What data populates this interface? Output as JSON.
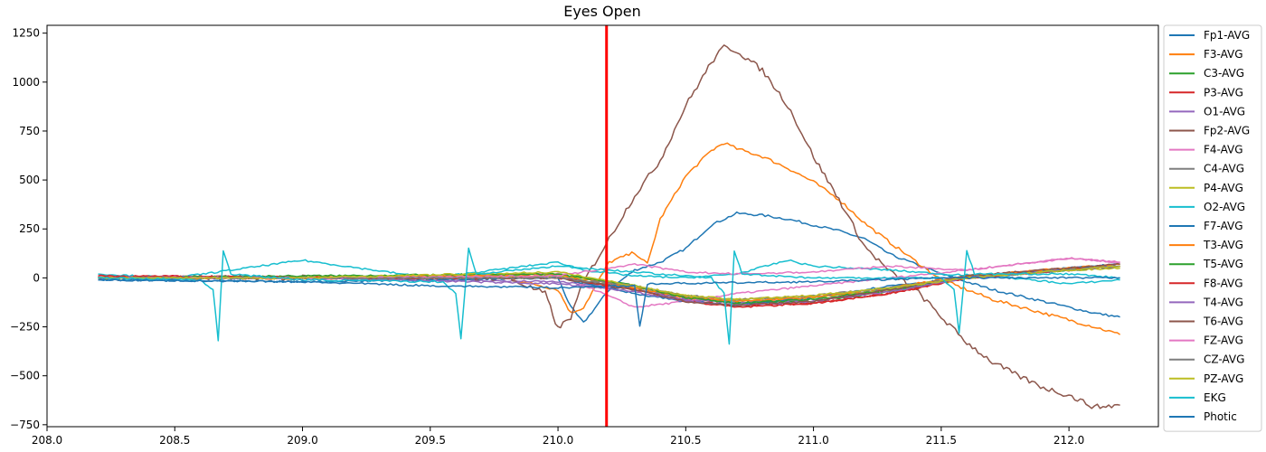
{
  "chart_data": {
    "type": "line",
    "title": "Eyes Open",
    "xlabel": "",
    "ylabel": "",
    "xlim": [
      208.0,
      212.35
    ],
    "ylim": [
      -760,
      1290
    ],
    "xticks": [
      208.0,
      208.5,
      209.0,
      209.5,
      210.0,
      210.5,
      211.0,
      211.5,
      212.0
    ],
    "xtick_labels": [
      "208.0",
      "208.5",
      "209.0",
      "209.5",
      "210.0",
      "210.5",
      "211.0",
      "211.5",
      "212.0"
    ],
    "yticks": [
      -750,
      -500,
      -250,
      0,
      250,
      500,
      750,
      1000,
      1250
    ],
    "ytick_labels": [
      "−750",
      "−500",
      "−250",
      "0",
      "250",
      "500",
      "750",
      "1000",
      "1250"
    ],
    "grid": false,
    "legend_position": "outside-right",
    "marker_line": {
      "x": 210.19,
      "color": "#ff0000"
    },
    "series": [
      {
        "name": "Fp1-AVG",
        "color": "#1f77b4",
        "x": [
          208.2,
          209.0,
          209.8,
          210.0,
          210.05,
          210.1,
          210.2,
          210.3,
          210.4,
          210.5,
          210.6,
          210.7,
          210.8,
          210.9,
          211.0,
          211.1,
          211.2,
          211.3,
          211.5,
          211.7,
          211.9,
          212.1,
          212.2
        ],
        "y": [
          0,
          0,
          5,
          0,
          -150,
          -230,
          -60,
          40,
          80,
          150,
          270,
          330,
          320,
          300,
          270,
          240,
          200,
          120,
          20,
          -60,
          -120,
          -180,
          -200
        ]
      },
      {
        "name": "F3-AVG",
        "color": "#ff7f0e",
        "x": [
          208.2,
          209.0,
          209.8,
          210.0,
          210.05,
          210.1,
          210.2,
          210.3,
          210.35,
          210.4,
          210.5,
          210.6,
          210.65,
          210.7,
          210.8,
          210.9,
          211.0,
          211.1,
          211.2,
          211.3,
          211.5,
          211.7,
          211.9,
          212.1,
          212.2
        ],
        "y": [
          0,
          0,
          0,
          -60,
          -180,
          -150,
          80,
          130,
          70,
          300,
          520,
          650,
          690,
          660,
          620,
          560,
          490,
          400,
          280,
          180,
          -10,
          -110,
          -180,
          -250,
          -290
        ]
      },
      {
        "name": "C3-AVG",
        "color": "#2ca02c",
        "x": [
          208.2,
          209.0,
          210.0,
          210.3,
          210.5,
          210.7,
          211.0,
          211.3,
          211.6,
          212.0,
          212.2
        ],
        "y": [
          5,
          0,
          20,
          -40,
          -100,
          -130,
          -120,
          -70,
          0,
          40,
          60
        ]
      },
      {
        "name": "P3-AVG",
        "color": "#d62728",
        "x": [
          208.2,
          209.0,
          210.0,
          210.3,
          210.5,
          210.7,
          211.0,
          211.3,
          211.6,
          212.0,
          212.2
        ],
        "y": [
          10,
          5,
          10,
          -60,
          -110,
          -140,
          -130,
          -80,
          0,
          40,
          60
        ]
      },
      {
        "name": "O1-AVG",
        "color": "#9467bd",
        "x": [
          208.2,
          209.0,
          210.0,
          210.3,
          210.5,
          210.7,
          211.0,
          211.3,
          211.6,
          212.0,
          212.2
        ],
        "y": [
          0,
          0,
          -20,
          -60,
          -110,
          -130,
          -110,
          -60,
          10,
          50,
          70
        ]
      },
      {
        "name": "Fp2-AVG",
        "color": "#8c564b",
        "x": [
          208.2,
          209.0,
          209.8,
          209.95,
          210.0,
          210.05,
          210.1,
          210.2,
          210.3,
          210.4,
          210.5,
          210.6,
          210.65,
          210.7,
          210.8,
          210.9,
          211.0,
          211.1,
          211.2,
          211.3,
          211.4,
          211.5,
          211.6,
          211.7,
          211.8,
          211.9,
          212.0,
          212.1,
          212.2
        ],
        "y": [
          0,
          0,
          0,
          -80,
          -260,
          -200,
          -20,
          200,
          420,
          600,
          880,
          1100,
          1180,
          1160,
          1060,
          880,
          620,
          400,
          160,
          30,
          -60,
          -200,
          -330,
          -430,
          -500,
          -560,
          -600,
          -660,
          -650
        ]
      },
      {
        "name": "F4-AVG",
        "color": "#e377c2",
        "x": [
          208.2,
          209.0,
          210.0,
          210.3,
          210.5,
          210.7,
          211.0,
          211.3,
          211.6,
          212.0,
          212.2
        ],
        "y": [
          10,
          0,
          20,
          -150,
          -120,
          -80,
          -40,
          0,
          40,
          100,
          80
        ]
      },
      {
        "name": "C4-AVG",
        "color": "#7f7f7f",
        "x": [
          208.2,
          209.0,
          210.0,
          210.3,
          210.5,
          210.7,
          211.0,
          211.3,
          211.6,
          212.0,
          212.2
        ],
        "y": [
          0,
          0,
          0,
          -50,
          -100,
          -120,
          -100,
          -60,
          0,
          40,
          60
        ]
      },
      {
        "name": "P4-AVG",
        "color": "#bcbd22",
        "x": [
          208.2,
          209.0,
          210.0,
          210.3,
          210.5,
          210.7,
          211.0,
          211.3,
          211.6,
          212.0,
          212.2
        ],
        "y": [
          0,
          0,
          10,
          -40,
          -90,
          -110,
          -100,
          -60,
          0,
          40,
          50
        ]
      },
      {
        "name": "O2-AVG",
        "color": "#17becf",
        "x": [
          208.2,
          208.5,
          209.0,
          209.5,
          210.0,
          210.1,
          210.3,
          210.5,
          210.7,
          210.9,
          211.0,
          211.3,
          211.5,
          211.7,
          212.0,
          212.2
        ],
        "y": [
          20,
          0,
          90,
          0,
          80,
          40,
          10,
          0,
          20,
          90,
          60,
          40,
          20,
          10,
          -30,
          -10
        ]
      },
      {
        "name": "F7-AVG",
        "color": "#1f77b4",
        "x": [
          208.2,
          209.0,
          210.0,
          210.3,
          210.5,
          210.7,
          211.0,
          211.3,
          211.6,
          212.0,
          212.2
        ],
        "y": [
          -10,
          -20,
          0,
          -80,
          -120,
          -140,
          -100,
          -40,
          0,
          50,
          70
        ]
      },
      {
        "name": "T3-AVG",
        "color": "#ff7f0e",
        "x": [
          208.2,
          209.0,
          210.0,
          210.3,
          210.5,
          210.7,
          211.0,
          211.3,
          211.6,
          212.0,
          212.2
        ],
        "y": [
          0,
          0,
          20,
          -50,
          -100,
          -120,
          -100,
          -50,
          10,
          50,
          70
        ]
      },
      {
        "name": "T5-AVG",
        "color": "#2ca02c",
        "x": [
          208.2,
          209.0,
          210.0,
          210.3,
          210.5,
          210.7,
          211.0,
          211.3,
          211.6,
          212.0,
          212.2
        ],
        "y": [
          0,
          10,
          20,
          -40,
          -100,
          -130,
          -110,
          -60,
          0,
          40,
          60
        ]
      },
      {
        "name": "F8-AVG",
        "color": "#d62728",
        "x": [
          208.2,
          209.0,
          210.0,
          210.3,
          210.5,
          210.7,
          211.0,
          211.3,
          211.6,
          212.0,
          212.2
        ],
        "y": [
          10,
          0,
          0,
          -60,
          -120,
          -150,
          -130,
          -80,
          0,
          40,
          60
        ]
      },
      {
        "name": "T4-AVG",
        "color": "#9467bd",
        "x": [
          208.2,
          209.0,
          210.0,
          210.3,
          210.5,
          210.7,
          211.0,
          211.3,
          211.6,
          212.0,
          212.2
        ],
        "y": [
          0,
          0,
          -30,
          -70,
          -120,
          -140,
          -120,
          -70,
          0,
          40,
          60
        ]
      },
      {
        "name": "T6-AVG",
        "color": "#8c564b",
        "x": [
          208.2,
          209.0,
          210.0,
          210.3,
          210.5,
          210.7,
          211.0,
          211.3,
          211.6,
          212.0,
          212.2
        ],
        "y": [
          0,
          0,
          0,
          -60,
          -120,
          -140,
          -120,
          -60,
          10,
          50,
          70
        ]
      },
      {
        "name": "FZ-AVG",
        "color": "#e377c2",
        "x": [
          208.2,
          209.0,
          210.0,
          210.3,
          210.5,
          210.7,
          211.0,
          211.3,
          211.6,
          212.0,
          212.2
        ],
        "y": [
          0,
          0,
          10,
          70,
          30,
          20,
          30,
          60,
          40,
          100,
          80
        ]
      },
      {
        "name": "CZ-AVG",
        "color": "#7f7f7f",
        "x": [
          208.2,
          209.0,
          210.0,
          210.3,
          210.5,
          210.7,
          211.0,
          211.3,
          211.6,
          212.0,
          212.2
        ],
        "y": [
          0,
          0,
          0,
          -40,
          -90,
          -110,
          -90,
          -50,
          0,
          40,
          60
        ]
      },
      {
        "name": "PZ-AVG",
        "color": "#bcbd22",
        "x": [
          208.2,
          209.0,
          210.0,
          210.3,
          210.5,
          210.7,
          211.0,
          211.3,
          211.6,
          212.0,
          212.2
        ],
        "y": [
          0,
          0,
          30,
          -40,
          -90,
          -110,
          -90,
          -50,
          0,
          40,
          60
        ]
      },
      {
        "name": "EKG",
        "color": "#17becf",
        "x": [
          208.2,
          208.6,
          208.65,
          208.67,
          208.69,
          208.72,
          209.0,
          209.55,
          209.6,
          209.62,
          209.65,
          209.68,
          210.0,
          210.6,
          210.65,
          210.67,
          210.69,
          210.72,
          211.0,
          211.5,
          211.55,
          211.57,
          211.6,
          211.63,
          212.0,
          212.2
        ],
        "y": [
          0,
          -10,
          -60,
          -320,
          140,
          20,
          -10,
          -20,
          -80,
          -310,
          150,
          20,
          60,
          0,
          -80,
          -340,
          140,
          20,
          0,
          0,
          -60,
          -280,
          140,
          20,
          20,
          0
        ]
      },
      {
        "name": "Photic",
        "color": "#1f77b4",
        "x": [
          208.2,
          209.0,
          209.5,
          210.0,
          210.3,
          210.32,
          210.35,
          211.0,
          211.5,
          212.2
        ],
        "y": [
          -10,
          -20,
          -40,
          -50,
          -40,
          -250,
          -30,
          -20,
          0,
          0
        ]
      }
    ]
  }
}
